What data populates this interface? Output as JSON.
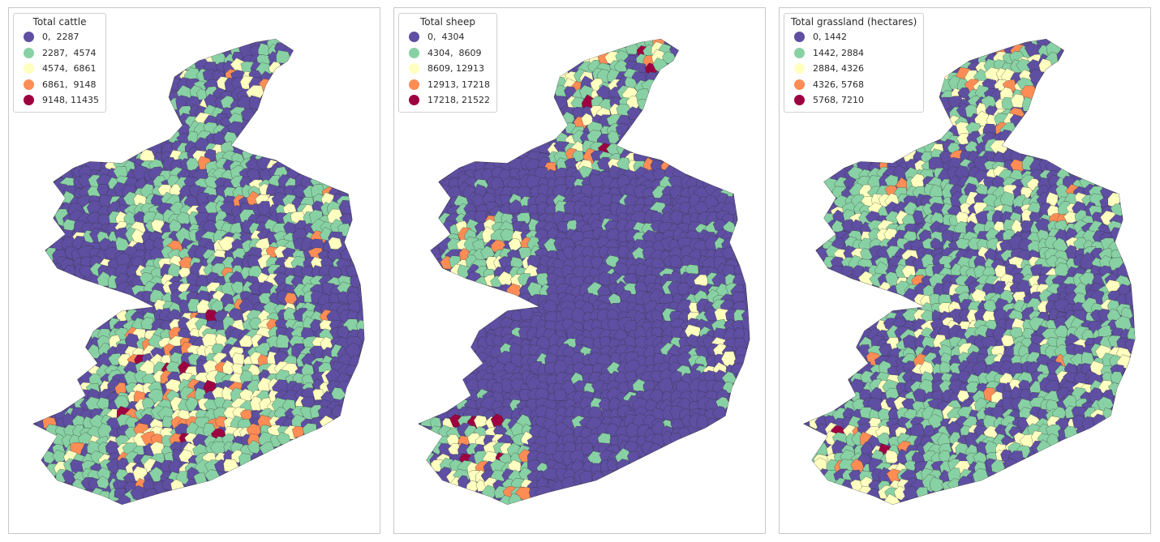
{
  "colors": {
    "class1": "#5e4fa2",
    "class2": "#88d1a4",
    "class3": "#ffffbf",
    "class4": "#fd8d55",
    "class5": "#9e0142",
    "boundary": "#2d2d2d"
  },
  "maps": [
    {
      "legend_title": "Total cattle",
      "classes": [
        "0,  2287",
        "2287,  4574",
        "4574,  6861",
        "6861,  9148",
        "9148, 11435"
      ],
      "dominant_pattern": "mixed_widespread"
    },
    {
      "legend_title": "Total sheep",
      "classes": [
        "0,  4304",
        "4304,  8609",
        "8609, 12913",
        "12913, 17218",
        "17218, 21522"
      ],
      "dominant_pattern": "low_except_west_and_northwest"
    },
    {
      "legend_title": "Total grassland (hectares)",
      "classes": [
        "0, 1442",
        "1442, 2884",
        "2884, 4326",
        "4326, 5768",
        "5768, 7210"
      ],
      "dominant_pattern": "mostly_low_to_mid"
    }
  ]
}
